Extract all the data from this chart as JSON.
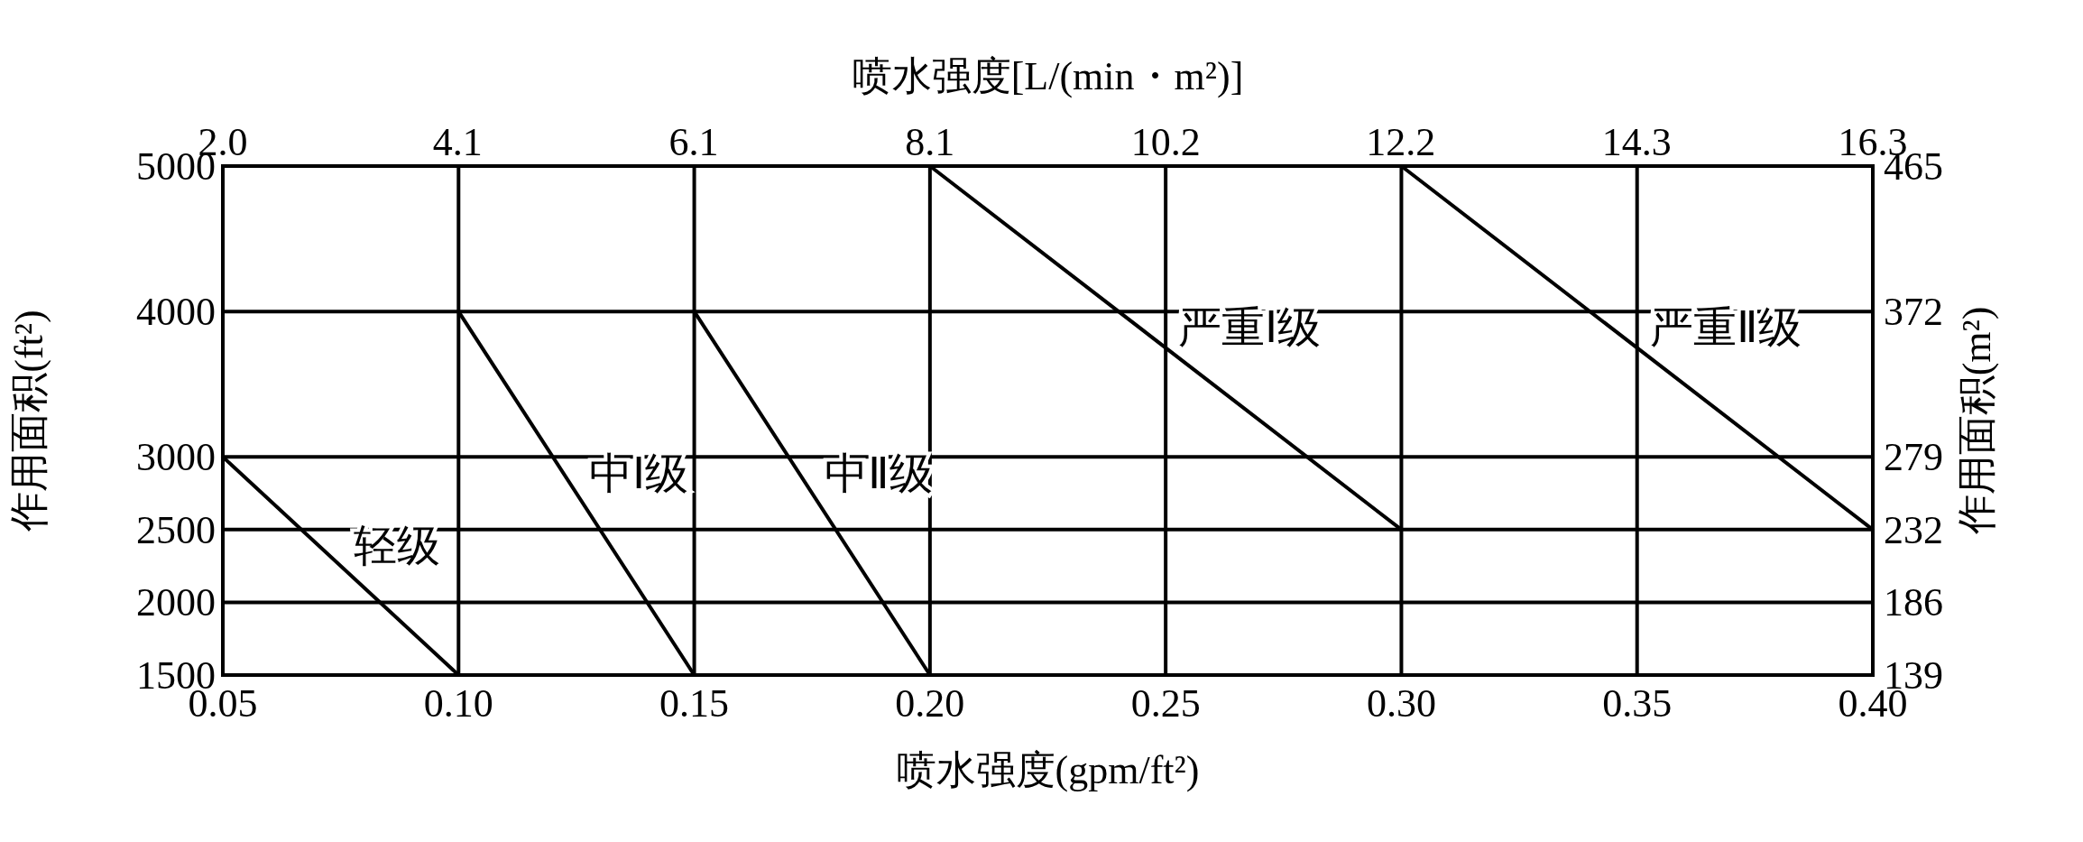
{
  "chart_data": {
    "type": "line",
    "xlabel": "喷水强度(gpm/ft²)",
    "x2label": "喷水强度[L/(min・m²)]",
    "ylabel": "作用面积(ft²)",
    "y2label": "作用面积(m²)",
    "xlim": [
      0.05,
      0.4
    ],
    "xticks": [
      {
        "value": 0.05,
        "label": "0.05"
      },
      {
        "value": 0.1,
        "label": "0.10"
      },
      {
        "value": 0.15,
        "label": "0.15"
      },
      {
        "value": 0.2,
        "label": "0.20"
      },
      {
        "value": 0.25,
        "label": "0.25"
      },
      {
        "value": 0.3,
        "label": "0.30"
      },
      {
        "value": 0.35,
        "label": "0.35"
      },
      {
        "value": 0.4,
        "label": "0.40"
      }
    ],
    "x2lim": [
      2.04,
      16.3
    ],
    "x2ticks": [
      {
        "value": 2.04,
        "label": "2.0"
      },
      {
        "value": 4.07,
        "label": "4.1"
      },
      {
        "value": 6.11,
        "label": "6.1"
      },
      {
        "value": 8.15,
        "label": "8.1"
      },
      {
        "value": 10.19,
        "label": "10.2"
      },
      {
        "value": 12.22,
        "label": "12.2"
      },
      {
        "value": 14.26,
        "label": "14.3"
      },
      16.3
    ],
    "ylim": [
      1500,
      5000
    ],
    "yticks": [
      1500,
      2000,
      2500,
      3000,
      4000,
      5000
    ],
    "y2lim": [
      139,
      465
    ],
    "y2ticks": [
      139,
      186,
      232,
      279,
      372,
      465
    ],
    "grid": true,
    "series": [
      {
        "name": "轻级",
        "color": "#000000",
        "x": [
          0.05,
          0.1
        ],
        "values": [
          3000,
          1500
        ]
      },
      {
        "name": "中Ⅰ级",
        "color": "#000000",
        "x": [
          0.1,
          0.15
        ],
        "values": [
          4000,
          1500
        ]
      },
      {
        "name": "中Ⅱ级",
        "color": "#000000",
        "x": [
          0.15,
          0.2
        ],
        "values": [
          4000,
          1500
        ]
      },
      {
        "name": "严重Ⅰ级",
        "color": "#000000",
        "x": [
          0.2,
          0.3
        ],
        "values": [
          5000,
          2500
        ]
      },
      {
        "name": "严重Ⅱ级",
        "color": "#000000",
        "x": [
          0.3,
          0.4
        ],
        "values": [
          5000,
          2500
        ]
      }
    ]
  }
}
